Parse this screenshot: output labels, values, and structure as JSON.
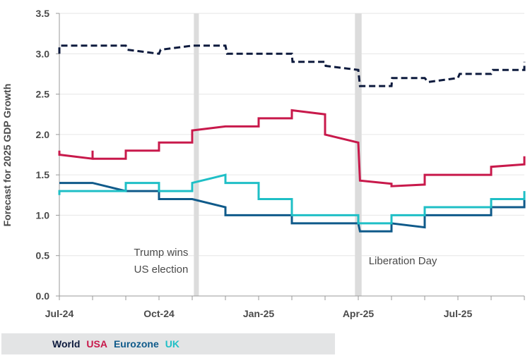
{
  "chart_data": {
    "type": "line",
    "ylabel": "Forecast for 2025 GDP Growth",
    "xlabel": "",
    "ylim": [
      0,
      3.5
    ],
    "yticks": [
      "0.0",
      "0.5",
      "1.0",
      "1.5",
      "2.0",
      "2.5",
      "3.0",
      "3.5"
    ],
    "x_unit": "months since Jul-24",
    "xlim": [
      0,
      14
    ],
    "xtick_labels": [
      {
        "x": 0,
        "label": "Jul-24"
      },
      {
        "x": 3,
        "label": "Oct-24"
      },
      {
        "x": 6,
        "label": "Jan-25"
      },
      {
        "x": 9,
        "label": "Apr-25"
      },
      {
        "x": 12,
        "label": "Jul-25"
      }
    ],
    "grid": true,
    "legend_position": "bottom-left",
    "events": [
      {
        "label_lines": [
          "Trump wins",
          "US election"
        ],
        "x_start": 4.05,
        "x_end": 4.2
      },
      {
        "label_lines": [
          "Liberation Day"
        ],
        "x_start": 8.9,
        "x_end": 9.1
      }
    ],
    "series": [
      {
        "name": "World",
        "color": "#0d1a3d",
        "dashed": true,
        "points": [
          [
            0,
            3.0
          ],
          [
            0,
            3.1
          ],
          [
            2,
            3.1
          ],
          [
            2.05,
            3.05
          ],
          [
            3,
            3.0
          ],
          [
            3.05,
            3.05
          ],
          [
            4,
            3.1
          ],
          [
            5,
            3.1
          ],
          [
            5.05,
            3.0
          ],
          [
            7,
            3.0
          ],
          [
            7.02,
            2.9
          ],
          [
            8,
            2.9
          ],
          [
            8.02,
            2.85
          ],
          [
            9,
            2.8
          ],
          [
            9.05,
            2.6
          ],
          [
            10,
            2.6
          ],
          [
            10.02,
            2.7
          ],
          [
            11,
            2.7
          ],
          [
            11.1,
            2.65
          ],
          [
            12,
            2.7
          ],
          [
            12.05,
            2.75
          ],
          [
            13,
            2.75
          ],
          [
            13.05,
            2.8
          ],
          [
            14,
            2.8
          ],
          [
            14,
            2.9
          ]
        ]
      },
      {
        "name": "USA",
        "color": "#c8194b",
        "dashed": false,
        "points": [
          [
            0,
            1.8
          ],
          [
            0,
            1.75
          ],
          [
            1,
            1.7
          ],
          [
            1,
            1.8
          ],
          [
            1,
            1.7
          ],
          [
            2,
            1.7
          ],
          [
            2,
            1.8
          ],
          [
            3,
            1.8
          ],
          [
            3,
            1.9
          ],
          [
            4,
            1.9
          ],
          [
            4,
            2.05
          ],
          [
            5,
            2.1
          ],
          [
            6,
            2.1
          ],
          [
            6,
            2.2
          ],
          [
            7,
            2.2
          ],
          [
            7,
            2.3
          ],
          [
            8,
            2.25
          ],
          [
            8,
            2.0
          ],
          [
            9,
            1.9
          ],
          [
            9.05,
            1.43
          ],
          [
            10,
            1.39
          ],
          [
            10,
            1.36
          ],
          [
            11,
            1.38
          ],
          [
            11,
            1.5
          ],
          [
            13,
            1.5
          ],
          [
            13,
            1.6
          ],
          [
            14,
            1.63
          ],
          [
            14,
            1.73
          ]
        ]
      },
      {
        "name": "Eurozone",
        "color": "#0f5a8a",
        "dashed": false,
        "points": [
          [
            0,
            1.4
          ],
          [
            1,
            1.4
          ],
          [
            2,
            1.3
          ],
          [
            3,
            1.3
          ],
          [
            3,
            1.2
          ],
          [
            4,
            1.2
          ],
          [
            5,
            1.1
          ],
          [
            5,
            1.0
          ],
          [
            7,
            1.0
          ],
          [
            7,
            0.9
          ],
          [
            9,
            0.9
          ],
          [
            9.05,
            0.8
          ],
          [
            10,
            0.8
          ],
          [
            10,
            0.9
          ],
          [
            11,
            0.85
          ],
          [
            11,
            1.0
          ],
          [
            13,
            1.0
          ],
          [
            13,
            1.1
          ],
          [
            14,
            1.1
          ],
          [
            14,
            1.2
          ]
        ]
      },
      {
        "name": "UK",
        "color": "#1fbfc6",
        "dashed": false,
        "points": [
          [
            0,
            1.25
          ],
          [
            0,
            1.3
          ],
          [
            2,
            1.3
          ],
          [
            2,
            1.4
          ],
          [
            3,
            1.4
          ],
          [
            3,
            1.3
          ],
          [
            4,
            1.3
          ],
          [
            4,
            1.4
          ],
          [
            5,
            1.5
          ],
          [
            5,
            1.4
          ],
          [
            6,
            1.4
          ],
          [
            6,
            1.2
          ],
          [
            7,
            1.2
          ],
          [
            7,
            1.0
          ],
          [
            9,
            1.0
          ],
          [
            9,
            0.9
          ],
          [
            10,
            0.9
          ],
          [
            10,
            1.0
          ],
          [
            11,
            1.0
          ],
          [
            11,
            1.1
          ],
          [
            13,
            1.1
          ],
          [
            13,
            1.2
          ],
          [
            14,
            1.2
          ],
          [
            14,
            1.3
          ]
        ]
      }
    ]
  }
}
